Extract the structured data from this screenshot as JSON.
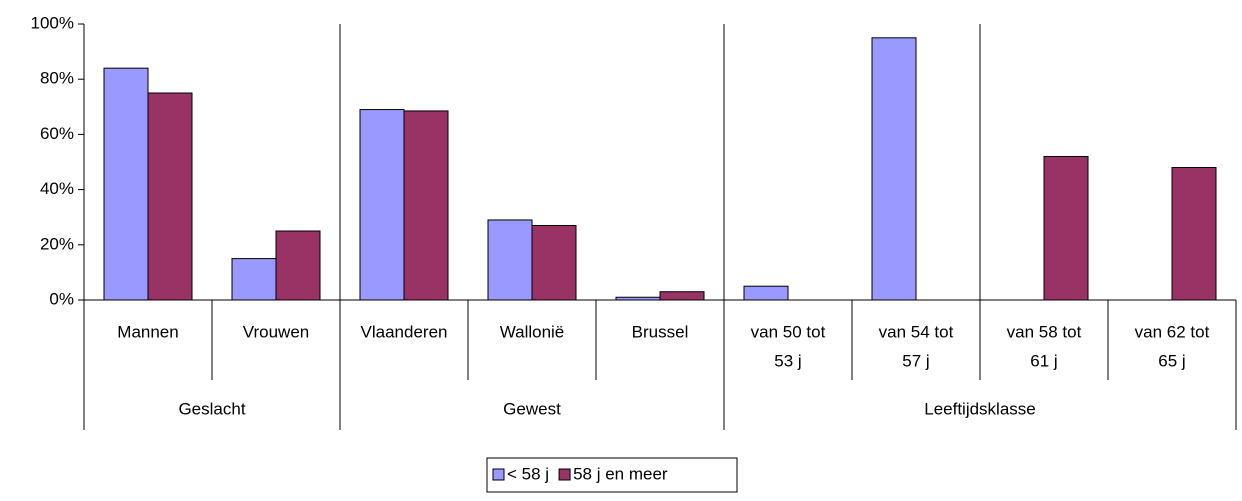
{
  "chart_data": {
    "type": "bar",
    "categories": [
      [
        "Mannen"
      ],
      [
        "Vrouwen"
      ],
      [
        "Vlaanderen"
      ],
      [
        "Wallonië"
      ],
      [
        "Brussel"
      ],
      [
        "van 50 tot",
        "53 j"
      ],
      [
        "van 54 tot",
        "57 j"
      ],
      [
        "van 58 tot",
        "61 j"
      ],
      [
        "van 62 tot",
        "65 j"
      ]
    ],
    "groups": [
      {
        "name": "Geslacht",
        "size": 2
      },
      {
        "name": "Gewest",
        "size": 3
      },
      {
        "name": "Leeftijdsklasse",
        "size": 4
      }
    ],
    "series": [
      {
        "name": "< 58 j",
        "color": "#9999ff",
        "values": [
          84,
          15,
          69,
          29,
          1,
          5,
          95,
          null,
          null
        ]
      },
      {
        "name": "58 j en meer",
        "color": "#993366",
        "values": [
          75,
          25,
          68.5,
          27,
          3,
          null,
          null,
          52,
          48
        ]
      }
    ],
    "ylim": [
      0,
      100
    ],
    "yticks": [
      {
        "value": 0,
        "label": "0%"
      },
      {
        "value": 20,
        "label": "20%"
      },
      {
        "value": 40,
        "label": "40%"
      },
      {
        "value": 60,
        "label": "60%"
      },
      {
        "value": 80,
        "label": "80%"
      },
      {
        "value": 100,
        "label": "100%"
      }
    ],
    "legend": "bottom"
  }
}
